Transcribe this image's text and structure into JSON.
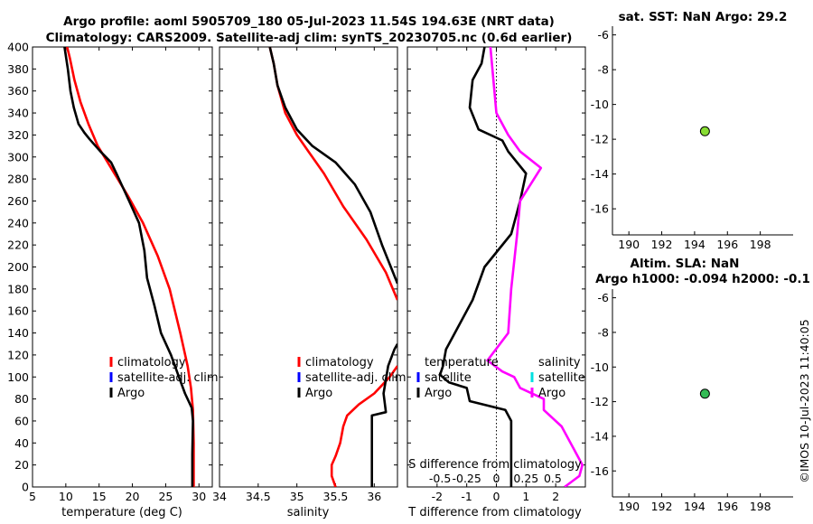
{
  "header": {
    "title_line1": "Argo profile: aoml 5905709_180 05-Jul-2023 11.54S 194.63E (NRT data)",
    "title_line2": "Climatology: CARS2009. Satellite-adj clim: synTS_20230705.nc (0.6d earlier)"
  },
  "side": {
    "sst_title": "sat. SST: NaN Argo: 29.2",
    "altim_title1": "Altim. SLA: NaN",
    "altim_title2": "Argo h1000: -0.094 h2000: -0.1",
    "stamp": "©IMOS 10-Jul-2023 11:40:05"
  },
  "legend_temp": [
    "climatology",
    "satellite-adj. clim",
    "Argo"
  ],
  "legend_sal": [
    "climatology",
    "satellite-adj. clim",
    "Argo"
  ],
  "legend_diff": {
    "t_head": "temperature",
    "s_head": "salinity",
    "items": [
      "satellite",
      "Argo"
    ]
  },
  "colors": {
    "climatology": "#ff0000",
    "satellite": "#0000ff",
    "argo": "#000000",
    "t_sat": "#0000ff",
    "s_sat": "#00e0e0",
    "s_argo": "#ff00ff",
    "marker1": "#88dd33",
    "marker2": "#33bb55"
  },
  "chart_data": [
    {
      "id": "temperature",
      "type": "line",
      "xlabel": "temperature (deg C)",
      "ylabel": "",
      "xlim": [
        5,
        32
      ],
      "ylim": [
        400,
        0
      ],
      "xticks": [
        5,
        10,
        15,
        20,
        25,
        30
      ],
      "yticks": [
        0,
        20,
        40,
        60,
        80,
        100,
        120,
        140,
        160,
        180,
        200,
        220,
        240,
        260,
        280,
        300,
        320,
        340,
        360,
        380,
        400
      ],
      "series": [
        {
          "name": "climatology",
          "color": "#ff0000",
          "points": [
            [
              29.2,
              0
            ],
            [
              29.2,
              40
            ],
            [
              29.1,
              70
            ],
            [
              28.8,
              90
            ],
            [
              28.3,
              110
            ],
            [
              27.2,
              140
            ],
            [
              25.6,
              180
            ],
            [
              23.8,
              210
            ],
            [
              21.6,
              240
            ],
            [
              19.3,
              265
            ],
            [
              16.8,
              290
            ],
            [
              14.8,
              310
            ],
            [
              13.4,
              330
            ],
            [
              12.2,
              350
            ],
            [
              11.3,
              370
            ],
            [
              10.6,
              390
            ],
            [
              10.2,
              400
            ]
          ]
        },
        {
          "name": "Argo",
          "color": "#000000",
          "points": [
            [
              29.0,
              0
            ],
            [
              29.0,
              30
            ],
            [
              29.1,
              60
            ],
            [
              28.9,
              72
            ],
            [
              27.9,
              85
            ],
            [
              27.0,
              100
            ],
            [
              25.8,
              120
            ],
            [
              24.3,
              140
            ],
            [
              23.3,
              165
            ],
            [
              22.2,
              190
            ],
            [
              21.8,
              215
            ],
            [
              21.0,
              240
            ],
            [
              19.5,
              260
            ],
            [
              17.6,
              285
            ],
            [
              16.8,
              295
            ],
            [
              15.2,
              305
            ],
            [
              13.6,
              316
            ],
            [
              12.8,
              322
            ],
            [
              11.9,
              330
            ],
            [
              11.2,
              345
            ],
            [
              10.7,
              360
            ],
            [
              10.3,
              380
            ],
            [
              9.8,
              400
            ]
          ]
        }
      ]
    },
    {
      "id": "salinity",
      "type": "line",
      "xlabel": "salinity",
      "ylabel": "",
      "xlim": [
        34,
        36.3
      ],
      "ylim": [
        400,
        0
      ],
      "xticks": [
        34,
        34.5,
        35,
        35.5,
        36
      ],
      "series": [
        {
          "name": "climatology",
          "color": "#ff0000",
          "points": [
            [
              35.5,
              0
            ],
            [
              35.45,
              10
            ],
            [
              35.45,
              20
            ],
            [
              35.5,
              28
            ],
            [
              35.56,
              40
            ],
            [
              35.6,
              55
            ],
            [
              35.65,
              65
            ],
            [
              35.8,
              75
            ],
            [
              36.0,
              85
            ],
            [
              36.2,
              100
            ],
            [
              36.3,
              110
            ]
          ],
          "points2": [
            [
              36.3,
              170
            ],
            [
              36.15,
              195
            ],
            [
              35.9,
              225
            ],
            [
              35.6,
              255
            ],
            [
              35.35,
              285
            ],
            [
              35.15,
              305
            ],
            [
              35.0,
              320
            ],
            [
              34.85,
              340
            ],
            [
              34.75,
              365
            ],
            [
              34.7,
              385
            ],
            [
              34.65,
              400
            ]
          ]
        },
        {
          "name": "Argo",
          "color": "#000000",
          "points": [
            [
              35.97,
              0
            ],
            [
              35.97,
              65
            ],
            [
              36.15,
              68
            ],
            [
              36.12,
              85
            ],
            [
              36.18,
              110
            ],
            [
              36.26,
              125
            ],
            [
              36.3,
              130
            ]
          ],
          "points2": [
            [
              36.3,
              185
            ],
            [
              36.1,
              220
            ],
            [
              35.95,
              250
            ],
            [
              35.75,
              275
            ],
            [
              35.5,
              295
            ],
            [
              35.2,
              310
            ],
            [
              35.0,
              325
            ],
            [
              34.85,
              345
            ],
            [
              34.75,
              365
            ],
            [
              34.7,
              385
            ],
            [
              34.65,
              400
            ]
          ]
        }
      ]
    },
    {
      "id": "difference",
      "type": "line",
      "xlabel": "T difference from climatology",
      "top_axis_label": "S difference from climatology",
      "xlim": [
        -3,
        3
      ],
      "ylim": [
        400,
        0
      ],
      "xticks": [
        -2,
        -1,
        0,
        1,
        2
      ],
      "top_ticks": [
        "-0.5",
        "-0.25",
        "0",
        "0.25",
        "0.5"
      ],
      "series": [
        {
          "name": "T Argo",
          "color": "#000000",
          "points": [
            [
              0.5,
              0
            ],
            [
              0.5,
              60
            ],
            [
              0.3,
              70
            ],
            [
              -0.9,
              78
            ],
            [
              -1.0,
              90
            ],
            [
              -1.6,
              95
            ],
            [
              -1.9,
              102
            ],
            [
              -1.8,
              110
            ],
            [
              -1.7,
              125
            ],
            [
              -1.4,
              140
            ],
            [
              -0.8,
              170
            ],
            [
              -0.4,
              200
            ],
            [
              0.5,
              230
            ],
            [
              0.8,
              260
            ],
            [
              1.0,
              285
            ],
            [
              0.4,
              305
            ],
            [
              0.2,
              315
            ],
            [
              -0.6,
              325
            ],
            [
              -0.9,
              345
            ],
            [
              -0.8,
              370
            ],
            [
              -0.5,
              385
            ],
            [
              -0.4,
              400
            ]
          ]
        },
        {
          "name": "S Argo",
          "color": "#ff00ff",
          "points": [
            [
              2.3,
              0
            ],
            [
              2.8,
              10
            ],
            [
              2.9,
              20
            ],
            [
              2.6,
              35
            ],
            [
              2.2,
              55
            ],
            [
              1.6,
              70
            ],
            [
              1.6,
              80
            ],
            [
              0.8,
              90
            ],
            [
              0.6,
              100
            ],
            [
              0.2,
              105
            ],
            [
              -0.3,
              115
            ],
            [
              0.4,
              140
            ],
            [
              0.5,
              180
            ],
            [
              0.7,
              230
            ],
            [
              0.8,
              260
            ],
            [
              1.5,
              290
            ],
            [
              0.8,
              305
            ],
            [
              0.4,
              320
            ],
            [
              0.0,
              340
            ],
            [
              -0.1,
              370
            ],
            [
              -0.2,
              400
            ]
          ]
        }
      ]
    },
    {
      "id": "sst_map",
      "type": "scatter",
      "xlim": [
        189,
        200
      ],
      "ylim": [
        -17.5,
        -5.5
      ],
      "xticks": [
        190,
        192,
        194,
        196,
        198
      ],
      "yticks": [
        -6,
        -8,
        -10,
        -12,
        -14,
        -16
      ],
      "points": [
        [
          194.63,
          -11.54
        ]
      ]
    },
    {
      "id": "sla_map",
      "type": "scatter",
      "xlim": [
        189,
        200
      ],
      "ylim": [
        -17.5,
        -5.5
      ],
      "xticks": [
        190,
        192,
        194,
        196,
        198
      ],
      "yticks": [
        -6,
        -8,
        -10,
        -12,
        -14,
        -16
      ],
      "points": [
        [
          194.63,
          -11.54
        ]
      ]
    }
  ]
}
